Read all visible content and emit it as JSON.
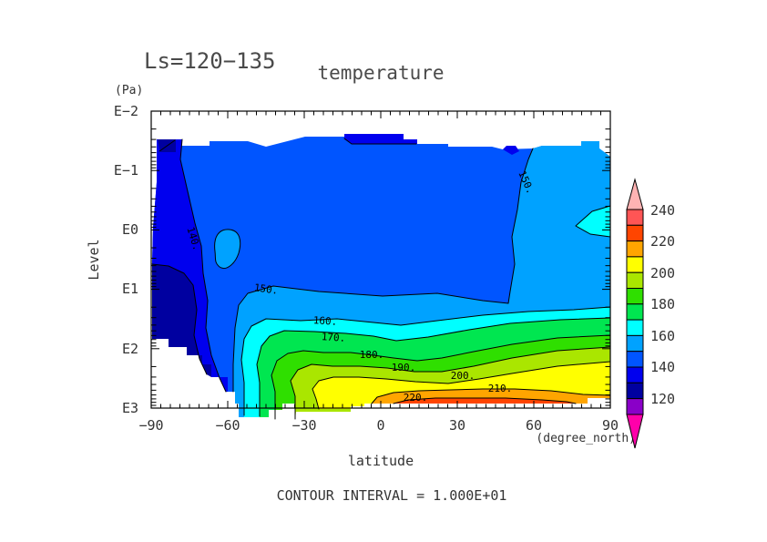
{
  "title": {
    "period": "Ls=120−135",
    "variable": "temperature"
  },
  "y_axis": {
    "unit": "(Pa)",
    "label": "Level",
    "ticks": [
      "E−2",
      "E−1",
      "E0",
      "E1",
      "E2",
      "E3"
    ]
  },
  "x_axis": {
    "unit": "(degree_north)",
    "label": "latitude",
    "ticks": [
      "−90",
      "−60",
      "−30",
      "0",
      "30",
      "60",
      "90"
    ]
  },
  "colorbar": {
    "tick_labels": [
      "240",
      "220",
      "200",
      "180",
      "160",
      "140",
      "120"
    ]
  },
  "contour_labels": {
    "c140": "140.",
    "c150_upper": "150.",
    "c150_lower": "150.",
    "c160": "160.",
    "c170": "170.",
    "c180": "180.",
    "c190": "190.",
    "c200": "200.",
    "c210": "210.",
    "c220": "220."
  },
  "footer": {
    "contour_interval": "CONTOUR INTERVAL = 1.000E+01"
  },
  "chart_data": {
    "type": "filled_contour",
    "title": "temperature",
    "subtitle": "Ls=120−135",
    "xlabel": "latitude",
    "x_unit": "degree_north",
    "x_range": [
      -90,
      90
    ],
    "x_tick_step": 30,
    "ylabel": "Level",
    "y_unit": "Pa",
    "y_scale": "log-inverted",
    "y_ticks": [
      "E−2",
      "E−1",
      "E0",
      "E1",
      "E2",
      "E3"
    ],
    "contour_interval": 10,
    "contour_interval_text": "1.000E+01",
    "colorbar_tick_values": [
      240,
      220,
      200,
      180,
      160,
      140,
      120
    ],
    "labeled_contour_values": [
      140,
      150,
      150,
      160,
      170,
      180,
      190,
      200,
      210,
      220
    ],
    "palette": [
      {
        "range": "<110",
        "color": "#FF00AA"
      },
      {
        "range": "110-120",
        "color": "#8A00C8"
      },
      {
        "range": "120-130",
        "color": "#0000A0"
      },
      {
        "range": "130-140",
        "color": "#0000EE"
      },
      {
        "range": "140-150",
        "color": "#0055FF"
      },
      {
        "range": "150-160",
        "color": "#00A2FF"
      },
      {
        "range": "160-170",
        "color": "#00FFFF"
      },
      {
        "range": "170-180",
        "color": "#00E650"
      },
      {
        "range": "180-190",
        "color": "#2FDF00"
      },
      {
        "range": "190-200",
        "color": "#AAE600"
      },
      {
        "range": "200-210",
        "color": "#FFFF00"
      },
      {
        "range": "210-220",
        "color": "#FFA500"
      },
      {
        "range": "220-230",
        "color": "#FF4500"
      },
      {
        "range": "230-240",
        "color": "#FF5555"
      },
      {
        "range": ">240",
        "color": "#FFB3B3"
      }
    ],
    "features": [
      "Most of the region above level E1 is 140-150 K (royal blue)",
      "Cold column below 140 K along the south (left) edge from E-1 down to E2+",
      "Coldest pocket 120-130 K near 80-85S around level E1",
      "Small 150-160 K closed pocket near 65S at level E0",
      "150-160 K region over the north pole above E1 with a 160-170 K wedge touching 90N near E0",
      "Stratified warm layers near the surface: 160 through 220+ K between E2 and E3",
      "Warmest band >220 K centered roughly 0-40N just above E3",
      "Field top edge is jagged near E-2 and data is cut off (white) near the surface south of ~60S"
    ]
  }
}
